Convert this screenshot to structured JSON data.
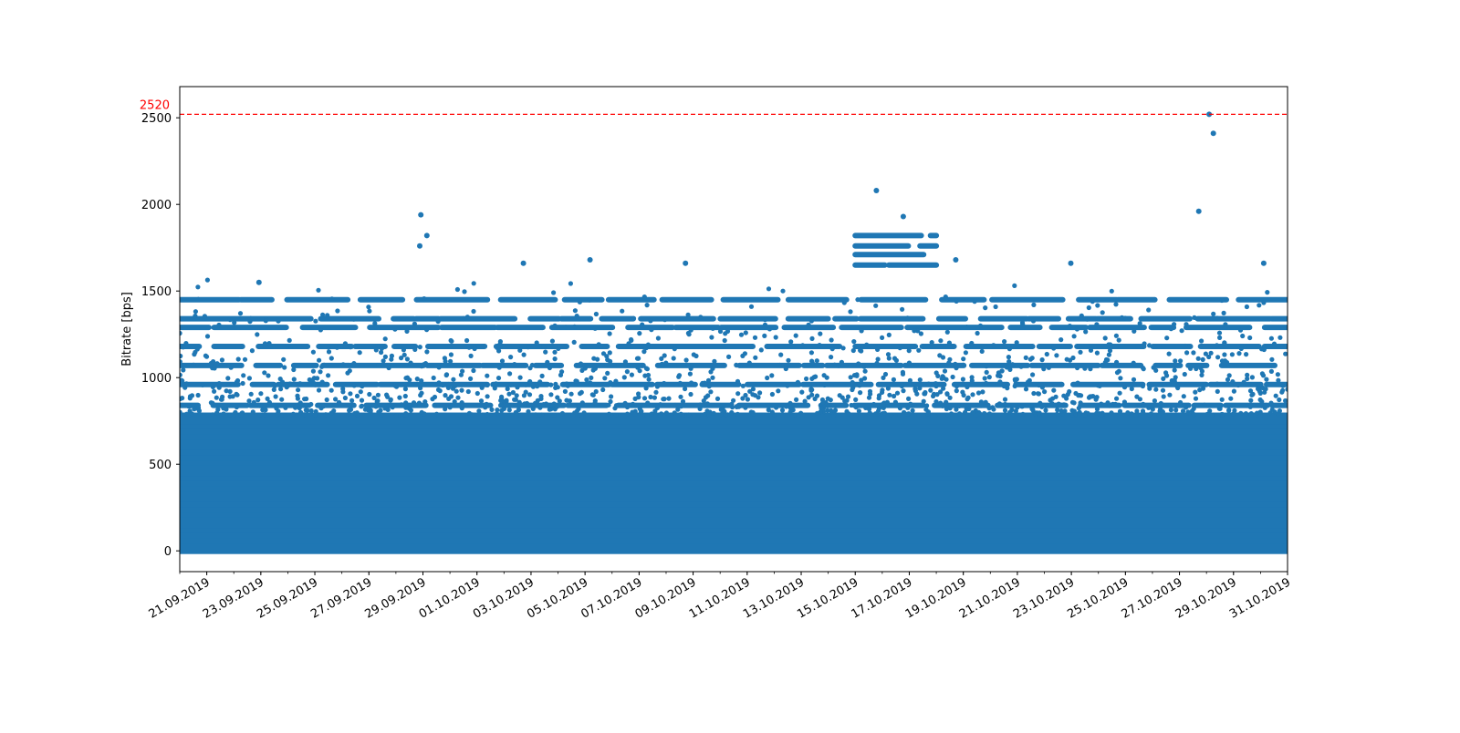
{
  "chart_data": {
    "type": "scatter",
    "ylabel": "Bitrate [bps]",
    "xlabel": "",
    "title": "",
    "grid": false,
    "xlim": [
      "2019-09-20",
      "2019-10-31"
    ],
    "ylim": [
      -120,
      2680
    ],
    "x_tick_labels": [
      "21.09.2019",
      "23.09.2019",
      "25.09.2019",
      "27.09.2019",
      "29.09.2019",
      "01.10.2019",
      "03.10.2019",
      "05.10.2019",
      "07.10.2019",
      "09.10.2019",
      "11.10.2019",
      "13.10.2019",
      "15.10.2019",
      "17.10.2019",
      "19.10.2019",
      "21.10.2019",
      "23.10.2019",
      "25.10.2019",
      "27.10.2019",
      "29.10.2019",
      "31.10.2019"
    ],
    "x_tick_dates": [
      "2019-09-21",
      "2019-09-23",
      "2019-09-25",
      "2019-09-27",
      "2019-09-29",
      "2019-10-01",
      "2019-10-03",
      "2019-10-05",
      "2019-10-07",
      "2019-10-09",
      "2019-10-11",
      "2019-10-13",
      "2019-10-15",
      "2019-10-17",
      "2019-10-19",
      "2019-10-21",
      "2019-10-23",
      "2019-10-25",
      "2019-10-27",
      "2019-10-29",
      "2019-10-31"
    ],
    "y_ticks": [
      0,
      500,
      1000,
      1500,
      2000,
      2500
    ],
    "threshold": {
      "value": 2520,
      "label": "2520",
      "color": "#ff0000",
      "style": "dashed"
    },
    "series_color": "#1f77b4",
    "bands": [
      {
        "values": [
          0,
          30,
          60,
          90,
          120,
          150,
          180,
          210,
          240,
          270,
          300,
          330,
          360,
          390,
          420,
          450,
          480,
          510,
          540,
          570,
          600,
          630,
          660,
          690,
          720,
          750,
          780
        ],
        "x_range": [
          "2019-09-20",
          "2019-10-31"
        ]
      },
      {
        "values": [
          840,
          960,
          1070,
          1180,
          1290,
          1340,
          1450
        ],
        "x_range": [
          "2019-09-20",
          "2019-10-31"
        ]
      },
      {
        "values": [
          1650,
          1710,
          1760,
          1820
        ],
        "x_range": [
          "2019-10-15",
          "2019-10-18"
        ]
      }
    ],
    "outliers": [
      {
        "x": "2019-09-29",
        "y": 1940
      },
      {
        "x": "2019-09-29",
        "y": 1820
      },
      {
        "x": "2019-09-29",
        "y": 1760
      },
      {
        "x": "2019-10-16",
        "y": 2080
      },
      {
        "x": "2019-10-17",
        "y": 1930
      },
      {
        "x": "2019-10-28",
        "y": 2520
      },
      {
        "x": "2019-10-28",
        "y": 2410
      },
      {
        "x": "2019-10-28",
        "y": 1960
      },
      {
        "x": "2019-10-09",
        "y": 1660
      },
      {
        "x": "2019-10-05",
        "y": 1680
      },
      {
        "x": "2019-10-23",
        "y": 1660
      },
      {
        "x": "2019-10-30",
        "y": 1660
      },
      {
        "x": "2019-10-19",
        "y": 1680
      },
      {
        "x": "2019-09-23",
        "y": 1550
      },
      {
        "x": "2019-10-03",
        "y": 1660
      }
    ]
  }
}
